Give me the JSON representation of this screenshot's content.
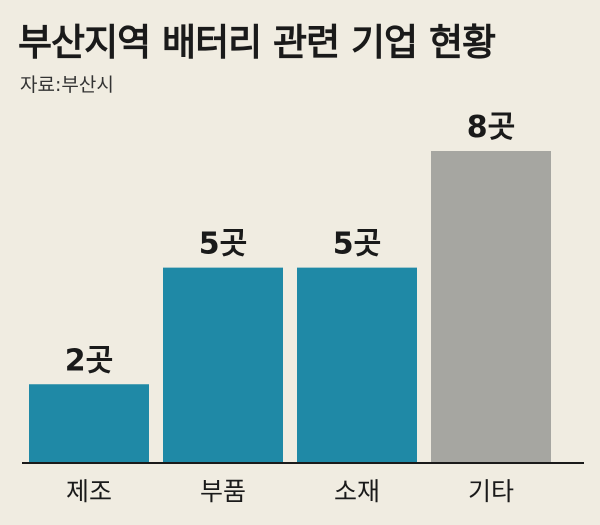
{
  "title": "부산지역 배터리 관련 기업 현황",
  "source": "자료:부산시",
  "colors": {
    "background": "#f0ece1",
    "bar_primary": "#1f89a6",
    "bar_secondary": "#a6a6a1",
    "axis": "#1a1a1a",
    "text": "#1a1a1a"
  },
  "chart_data": {
    "type": "bar",
    "categories": [
      "제조",
      "부품",
      "소재",
      "기타"
    ],
    "values": [
      2,
      5,
      5,
      8
    ],
    "data_labels": [
      "2곳",
      "5곳",
      "5곳",
      "8곳"
    ],
    "bar_colors": [
      "#1f89a6",
      "#1f89a6",
      "#1f89a6",
      "#a6a6a1"
    ],
    "title": "부산지역 배터리 관련 기업 현황",
    "xlabel": "",
    "ylabel": "",
    "ylim": [
      0,
      8
    ],
    "grid": false,
    "legend": "none"
  }
}
